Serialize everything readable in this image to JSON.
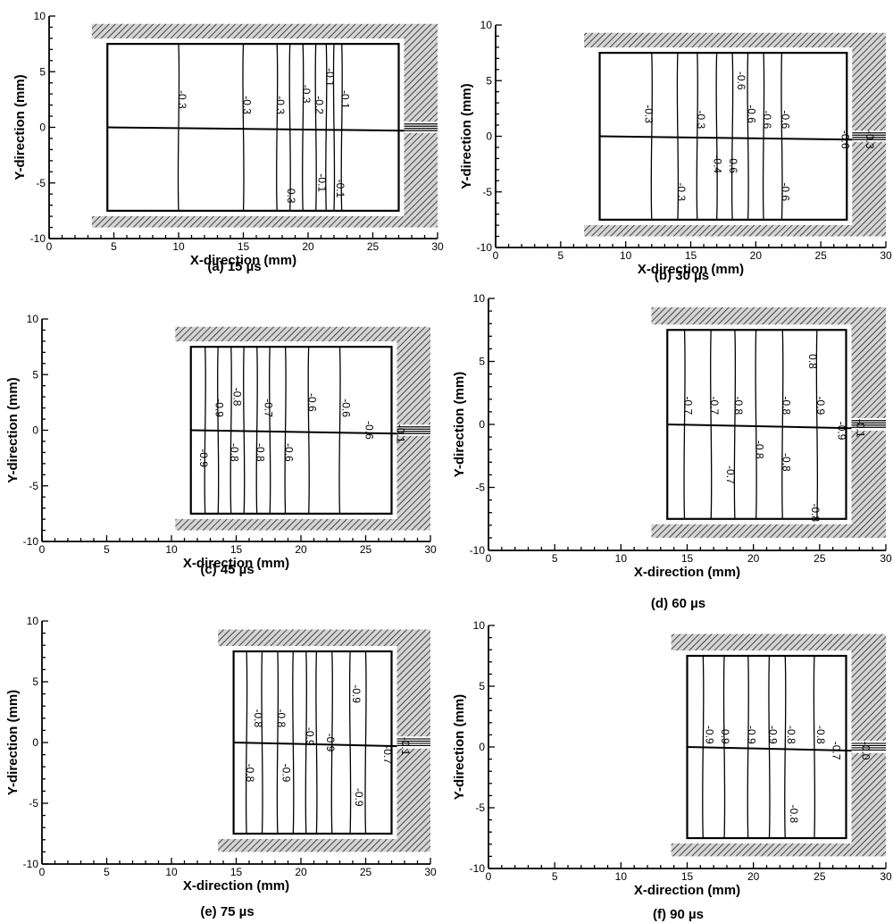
{
  "figure": {
    "panels": [
      {
        "id": "a",
        "caption": "(a) 15 µs",
        "xlabel": "X-direction (mm)",
        "ylabel": "Y-direction (mm)",
        "xlim": [
          0,
          30
        ],
        "ylim": [
          -10,
          10
        ],
        "xticks": [
          "0",
          "5",
          "10",
          "15",
          "20",
          "25",
          "30"
        ],
        "yticks": [
          "10",
          "5",
          "0",
          "-5",
          "-10"
        ],
        "chamber": {
          "x0": 4.5,
          "x1": 27.0,
          "y0": -7.5,
          "y1": 7.5
        },
        "contour_lines_x": [
          10.0,
          15.0,
          17.6,
          18.6,
          19.6,
          20.6,
          21.4,
          22.0,
          22.6
        ],
        "contour_labels": [
          {
            "text": "-0.3",
            "x": 10.0,
            "y": 2.5
          },
          {
            "text": "-0.3",
            "x": 15.0,
            "y": 2.0
          },
          {
            "text": "-0.3",
            "x": 17.6,
            "y": 2.0
          },
          {
            "text": "-0.3",
            "x": 19.6,
            "y": 3.0
          },
          {
            "text": "-0.2",
            "x": 20.6,
            "y": 2.0
          },
          {
            "text": "-0.1",
            "x": 21.4,
            "y": 4.5
          },
          {
            "text": "-0.1",
            "x": 22.6,
            "y": 2.5
          },
          {
            "text": "-0.3",
            "x": 18.4,
            "y": -6.0
          },
          {
            "text": "-0.1",
            "x": 20.8,
            "y": -5.0
          },
          {
            "text": "-0.1",
            "x": 22.2,
            "y": -5.5
          }
        ]
      },
      {
        "id": "b",
        "caption": "(b) 30 µs",
        "xlabel": "X-direction (mm)",
        "ylabel": "Y-direction (mm)",
        "xlim": [
          0,
          30
        ],
        "ylim": [
          -10,
          10
        ],
        "xticks": [
          "0",
          "5",
          "10",
          "15",
          "20",
          "25",
          "30"
        ],
        "yticks": [
          "10",
          "5",
          "0",
          "-5",
          "-10"
        ],
        "chamber": {
          "x0": 8.0,
          "x1": 27.0,
          "y0": -7.5,
          "y1": 7.5
        },
        "contour_lines_x": [
          12.0,
          14.0,
          15.5,
          17.0,
          18.2,
          19.4,
          20.6,
          22.0
        ],
        "contour_labels": [
          {
            "text": "-0.3",
            "x": 11.5,
            "y": 2.0
          },
          {
            "text": "-0.3",
            "x": 15.5,
            "y": 1.5
          },
          {
            "text": "-0.6",
            "x": 18.6,
            "y": 5.0
          },
          {
            "text": "-0.6",
            "x": 19.4,
            "y": 2.0
          },
          {
            "text": "-0.6",
            "x": 20.6,
            "y": 1.5
          },
          {
            "text": "-0.6",
            "x": 22.0,
            "y": 1.5
          },
          {
            "text": "-0.4",
            "x": 16.8,
            "y": -2.5
          },
          {
            "text": "-0.6",
            "x": 18.0,
            "y": -2.5
          },
          {
            "text": "-0.3",
            "x": 14.0,
            "y": -5.0
          },
          {
            "text": "-0.6",
            "x": 22.0,
            "y": -5.0
          },
          {
            "text": "-0.6",
            "x": 26.6,
            "y": -0.3
          },
          {
            "text": "-0.3",
            "x": 28.5,
            "y": -0.3
          }
        ]
      },
      {
        "id": "c",
        "caption": "(c) 45 µs",
        "xlabel": "X-direction (mm)",
        "ylabel": "Y-direction (mm)",
        "xlim": [
          0,
          30
        ],
        "ylim": [
          -10,
          10
        ],
        "xticks": [
          "0",
          "5",
          "10",
          "15",
          "20",
          "25",
          "30"
        ],
        "yticks": [
          "10",
          "5",
          "0",
          "-5",
          "-10"
        ],
        "chamber": {
          "x0": 11.5,
          "x1": 27.0,
          "y0": -7.5,
          "y1": 7.5
        },
        "contour_lines_x": [
          12.6,
          13.6,
          14.6,
          15.6,
          16.6,
          17.6,
          18.8,
          20.6,
          23.0
        ],
        "contour_labels": [
          {
            "text": "-0.9",
            "x": 13.4,
            "y": 2.0
          },
          {
            "text": "-0.8",
            "x": 14.8,
            "y": 3.0
          },
          {
            "text": "-0.7",
            "x": 17.2,
            "y": 2.0
          },
          {
            "text": "-0.6",
            "x": 20.6,
            "y": 2.5
          },
          {
            "text": "-0.6",
            "x": 23.2,
            "y": 2.0
          },
          {
            "text": "-0.9",
            "x": 12.2,
            "y": -2.5
          },
          {
            "text": "-0.8",
            "x": 14.6,
            "y": -2.0
          },
          {
            "text": "-0.8",
            "x": 16.6,
            "y": -2.0
          },
          {
            "text": "-0.6",
            "x": 18.8,
            "y": -2.0
          },
          {
            "text": "-0.6",
            "x": 25.0,
            "y": 0.0
          },
          {
            "text": "-0.1",
            "x": 27.4,
            "y": -0.3
          }
        ]
      },
      {
        "id": "d",
        "caption": "(d) 60 µs",
        "xlabel": "X-direction (mm)",
        "ylabel": "Y-direction (mm)",
        "xlim": [
          0,
          30
        ],
        "ylim": [
          -10,
          10
        ],
        "xticks": [
          "0",
          "5",
          "10",
          "15",
          "20",
          "25",
          "30"
        ],
        "yticks": [
          "10",
          "5",
          "0",
          "-5",
          "-10"
        ],
        "chamber": {
          "x0": 13.5,
          "x1": 27.0,
          "y0": -7.5,
          "y1": 7.5
        },
        "contour_lines_x": [
          14.8,
          16.8,
          18.6,
          20.2,
          22.2,
          24.8
        ],
        "contour_labels": [
          {
            "text": "-0.7",
            "x": 14.8,
            "y": 1.5
          },
          {
            "text": "-0.7",
            "x": 16.8,
            "y": 1.5
          },
          {
            "text": "-0.8",
            "x": 18.6,
            "y": 1.5
          },
          {
            "text": "-0.8",
            "x": 22.2,
            "y": 1.5
          },
          {
            "text": "-0.9",
            "x": 24.8,
            "y": 1.5
          },
          {
            "text": "0.8",
            "x": 24.2,
            "y": 5.0
          },
          {
            "text": "-0.8",
            "x": 20.2,
            "y": -2.0
          },
          {
            "text": "-0.8",
            "x": 22.2,
            "y": -3.0
          },
          {
            "text": "-0.7",
            "x": 18.0,
            "y": -4.0
          },
          {
            "text": "-0.8",
            "x": 24.4,
            "y": -7.0
          },
          {
            "text": "-0.9",
            "x": 26.4,
            "y": -0.5
          },
          {
            "text": "-0.1",
            "x": 27.8,
            "y": -0.3
          }
        ]
      },
      {
        "id": "e",
        "caption": "(e) 75 µs",
        "xlabel": "X-direction (mm)",
        "ylabel": "Y-direction (mm)",
        "xlim": [
          0,
          30
        ],
        "ylim": [
          -10,
          10
        ],
        "xticks": [
          "0",
          "5",
          "10",
          "15",
          "20",
          "25",
          "30"
        ],
        "yticks": [
          "10",
          "5",
          "0",
          "-5",
          "-10"
        ],
        "chamber": {
          "x0": 14.8,
          "x1": 27.0,
          "y0": -7.5,
          "y1": 7.5
        },
        "contour_lines_x": [
          15.8,
          17.0,
          18.2,
          19.4,
          20.4,
          21.2,
          22.4,
          23.8,
          25.0
        ],
        "contour_labels": [
          {
            "text": "-0.8",
            "x": 16.4,
            "y": 2.0
          },
          {
            "text": "-0.8",
            "x": 18.2,
            "y": 2.0
          },
          {
            "text": "-0.9",
            "x": 20.4,
            "y": 0.5
          },
          {
            "text": "-0.9",
            "x": 24.0,
            "y": 4.0
          },
          {
            "text": "-0.8",
            "x": 15.8,
            "y": -2.5
          },
          {
            "text": "-0.9",
            "x": 18.6,
            "y": -2.5
          },
          {
            "text": "-0.9",
            "x": 22.0,
            "y": 0.0
          },
          {
            "text": "-0.9",
            "x": 24.2,
            "y": -4.5
          },
          {
            "text": "-0.7",
            "x": 26.4,
            "y": -1.0
          },
          {
            "text": "-0.1",
            "x": 27.8,
            "y": -0.3
          }
        ]
      },
      {
        "id": "f",
        "caption": "(f) 90 µs",
        "xlabel": "X-direction (mm)",
        "ylabel": "Y-direction (mm)",
        "xlim": [
          0,
          30
        ],
        "ylim": [
          -10,
          10
        ],
        "xticks": [
          "0",
          "5",
          "10",
          "15",
          "20",
          "25",
          "30"
        ],
        "yticks": [
          "10",
          "5",
          "0",
          "-5",
          "-10"
        ],
        "chamber": {
          "x0": 15.0,
          "x1": 27.0,
          "y0": -7.5,
          "y1": 7.5
        },
        "contour_lines_x": [
          16.2,
          17.8,
          19.6,
          21.2,
          22.4,
          24.6
        ],
        "contour_labels": [
          {
            "text": "-0.9",
            "x": 16.4,
            "y": 1.0
          },
          {
            "text": "-0.9",
            "x": 17.6,
            "y": 1.0
          },
          {
            "text": "-0.9",
            "x": 19.6,
            "y": 1.0
          },
          {
            "text": "-0.9",
            "x": 21.2,
            "y": 1.0
          },
          {
            "text": "-0.8",
            "x": 22.6,
            "y": 1.0
          },
          {
            "text": "-0.8",
            "x": 24.8,
            "y": 1.0
          },
          {
            "text": "-0.7",
            "x": 26.0,
            "y": -0.3
          },
          {
            "text": "-0.8",
            "x": 22.8,
            "y": -5.5
          },
          {
            "text": "-0.0",
            "x": 28.2,
            "y": -0.3
          }
        ]
      }
    ]
  }
}
